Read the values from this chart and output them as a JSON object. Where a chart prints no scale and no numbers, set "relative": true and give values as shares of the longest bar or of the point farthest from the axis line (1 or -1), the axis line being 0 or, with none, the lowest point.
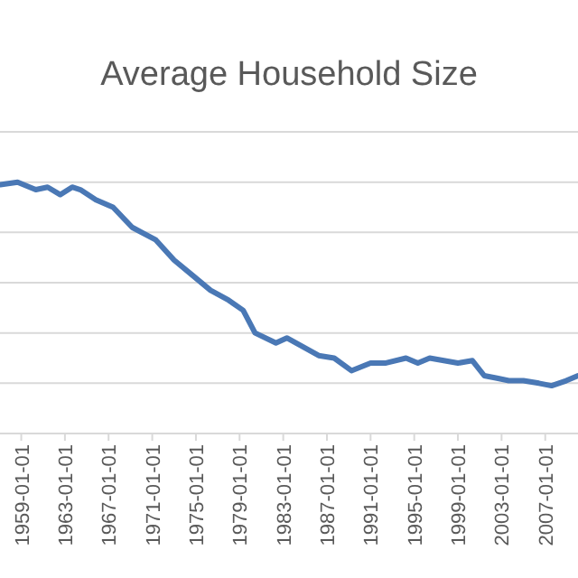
{
  "chart_data": {
    "type": "line",
    "title": "Average Household Size",
    "relative": true,
    "grid": "y",
    "marker": "none",
    "line_style": "solid",
    "xlim": [
      "1957-01-20",
      "2010-01-01"
    ],
    "xticks": [
      "1959-01-01",
      "1963-01-01",
      "1967-01-01",
      "1971-01-01",
      "1975-01-01",
      "1979-01-01",
      "1983-01-01",
      "1987-01-01",
      "1991-01-01",
      "1995-01-01",
      "1999-01-01",
      "2003-01-01",
      "2007-01-01"
    ],
    "x": [
      "1957-02",
      "1958-09",
      "1960-05",
      "1961-06",
      "1962-08",
      "1963-09",
      "1964-06",
      "1965-11",
      "1967-06",
      "1969-03",
      "1971-05",
      "1973-01",
      "1974-09",
      "1976-05",
      "1978-01",
      "1979-05",
      "1980-06",
      "1982-05",
      "1983-05",
      "1986-04",
      "1987-09",
      "1989-04",
      "1991-01",
      "1992-05",
      "1994-04",
      "1995-05",
      "1996-06",
      "1999-01",
      "2000-05",
      "2001-06",
      "2002-08",
      "2003-09",
      "2005-01",
      "2006-06",
      "2007-08",
      "2008-12",
      "2010-01"
    ],
    "series": [
      {
        "color": "#4a78b5",
        "values": [
          0.99,
          1,
          0.97,
          0.98,
          0.95,
          0.98,
          0.97,
          0.93,
          0.9,
          0.82,
          0.77,
          0.69,
          0.63,
          0.57,
          0.53,
          0.49,
          0.4,
          0.36,
          0.38,
          0.31,
          0.3,
          0.25,
          0.28,
          0.28,
          0.3,
          0.28,
          0.3,
          0.28,
          0.29,
          0.23,
          0.22,
          0.21,
          0.21,
          0.2,
          0.19,
          0.21,
          0.23
        ]
      }
    ]
  }
}
